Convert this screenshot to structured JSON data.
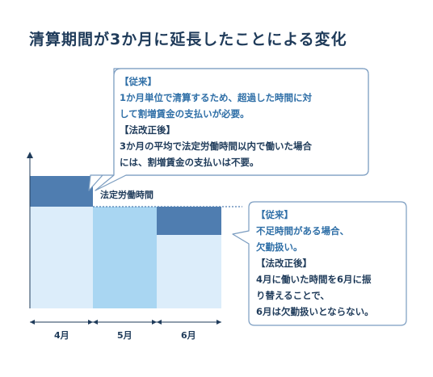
{
  "title": "清算期間が3か月に延長したことによる変化",
  "standard_hours_label": "法定労働時間",
  "months": [
    "4月",
    "5月",
    "6月"
  ],
  "callout_top": {
    "head1": "【従来】",
    "body1_line1": "1か月単位で清算するため、超過した時間に対",
    "body1_line2": "して割増賃金の支払いが必要。",
    "head2": "【法改正後】",
    "body2_line1": "3か月の平均で法定労働時間以内で働いた場合",
    "body2_line2": "には、割増賃金の支払いは不要。"
  },
  "callout_bottom": {
    "head1": "【従来】",
    "body1_line1": "不足時間がある場合、",
    "body1_line2": "欠勤扱い。",
    "head2": "【法改正後】",
    "body2_line1": "4月に働いた時間を6月に振",
    "body2_line2": "り替えることで、",
    "body2_line3": "6月は欠勤扱いとならない。"
  },
  "colors": {
    "dark_bar": "#4f7db0",
    "light_bar": "#a9d6f2",
    "pale_bar": "#dcedfa",
    "outline": "#1f3b5a"
  }
}
